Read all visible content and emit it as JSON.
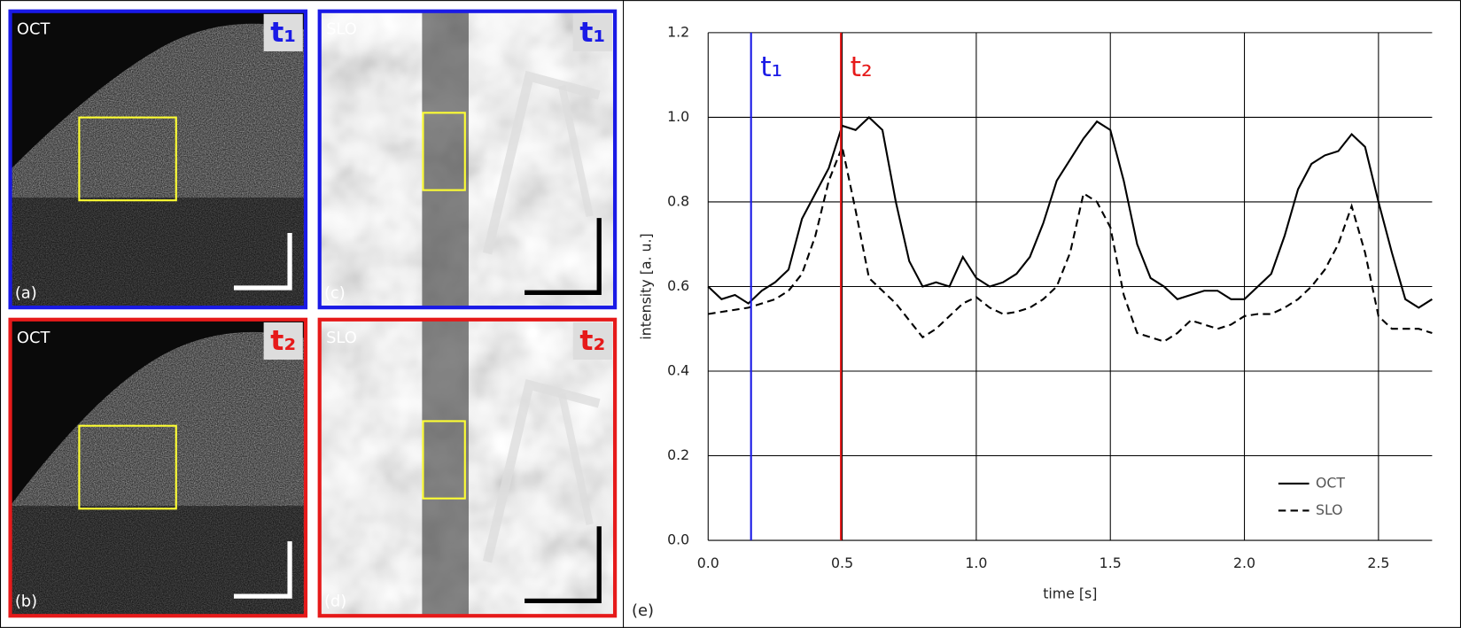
{
  "panels": [
    {
      "name": "OCT",
      "label": "(a)",
      "time": "t₁",
      "color": "#1a1ae6"
    },
    {
      "name": "SLO",
      "label": "(c)",
      "time": "t₁",
      "color": "#1a1ae6"
    },
    {
      "name": "OCT",
      "label": "(b)",
      "time": "t₂",
      "color": "#e61a1a"
    },
    {
      "name": "SLO",
      "label": "(d)",
      "time": "t₂",
      "color": "#e61a1a"
    }
  ],
  "chart_data": {
    "type": "line",
    "panel_label": "(e)",
    "xlabel": "time [s]",
    "ylabel": "intensity [a. u.]",
    "x": [
      0,
      0.05,
      0.1,
      0.15,
      0.2,
      0.25,
      0.3,
      0.35,
      0.4,
      0.45,
      0.5,
      0.55,
      0.6,
      0.65,
      0.7,
      0.75,
      0.8,
      0.85,
      0.9,
      0.95,
      1.0,
      1.05,
      1.1,
      1.15,
      1.2,
      1.25,
      1.3,
      1.35,
      1.4,
      1.45,
      1.5,
      1.55,
      1.6,
      1.65,
      1.7,
      1.75,
      1.8,
      1.85,
      1.9,
      1.95,
      2.0,
      2.05,
      2.1,
      2.15,
      2.2,
      2.25,
      2.3,
      2.35,
      2.4,
      2.45,
      2.5,
      2.55,
      2.6,
      2.65,
      2.7
    ],
    "series": [
      {
        "name": "OCT",
        "color": "#000000",
        "dash": false,
        "values": [
          0.6,
          0.57,
          0.58,
          0.56,
          0.59,
          0.61,
          0.64,
          0.76,
          0.82,
          0.88,
          0.98,
          0.97,
          1.0,
          0.97,
          0.8,
          0.66,
          0.6,
          0.61,
          0.6,
          0.67,
          0.62,
          0.6,
          0.61,
          0.63,
          0.67,
          0.75,
          0.85,
          0.9,
          0.95,
          0.99,
          0.97,
          0.85,
          0.7,
          0.62,
          0.6,
          0.57,
          0.58,
          0.59,
          0.59,
          0.57,
          0.57,
          0.6,
          0.63,
          0.72,
          0.83,
          0.89,
          0.91,
          0.92,
          0.96,
          0.93,
          0.8,
          0.68,
          0.57,
          0.55,
          0.57
        ]
      },
      {
        "name": "SLO",
        "color": "#000000",
        "dash": true,
        "values": [
          0.535,
          0.54,
          0.545,
          0.55,
          0.56,
          0.57,
          0.59,
          0.63,
          0.72,
          0.85,
          0.93,
          0.78,
          0.62,
          0.59,
          0.56,
          0.52,
          0.48,
          0.5,
          0.53,
          0.56,
          0.575,
          0.55,
          0.535,
          0.54,
          0.55,
          0.57,
          0.6,
          0.68,
          0.82,
          0.8,
          0.74,
          0.58,
          0.49,
          0.48,
          0.47,
          0.49,
          0.52,
          0.51,
          0.5,
          0.51,
          0.53,
          0.535,
          0.535,
          0.55,
          0.57,
          0.6,
          0.64,
          0.7,
          0.79,
          0.68,
          0.53,
          0.5,
          0.5,
          0.5,
          0.49
        ]
      }
    ],
    "annotations": [
      {
        "label": "t₁",
        "x": 0.16,
        "color": "#1a1ae6"
      },
      {
        "label": "t₂",
        "x": 0.495,
        "color": "#e61a1a"
      }
    ],
    "xlim": [
      0,
      2.7
    ],
    "xticks": [
      {
        "value": 0,
        "label": "0.0"
      },
      0.5,
      {
        "value": 1,
        "label": "1.0"
      },
      1.5,
      {
        "value": 2,
        "label": "2.0"
      },
      2.5
    ],
    "ylim": [
      0,
      1.2
    ],
    "yticks": [
      {
        "value": 0,
        "label": "0.0"
      },
      0.2,
      0.4,
      0.6,
      0.8,
      {
        "value": 1,
        "label": "1.0"
      },
      1.2
    ],
    "grid": true,
    "legend": "lower right"
  }
}
